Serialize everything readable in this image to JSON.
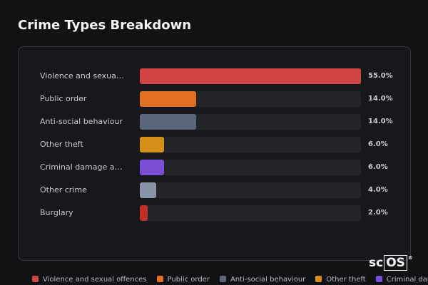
{
  "chart_data": {
    "type": "bar",
    "orientation": "horizontal",
    "title": "Crime Types Breakdown",
    "categories": [
      "Violence and sexual offences",
      "Public order",
      "Anti-social behaviour",
      "Other theft",
      "Criminal damage and arson",
      "Other crime",
      "Burglary"
    ],
    "values": [
      55,
      14,
      14,
      6,
      6,
      4,
      2
    ],
    "value_labels": [
      "55.0%",
      "14.0%",
      "14.0%",
      "6.0%",
      "6.0%",
      "4.0%",
      "2.0%"
    ],
    "colors": [
      "#d24545",
      "#e0701f",
      "#5c6679",
      "#d38f16",
      "#7a4fd6",
      "#8a94a6",
      "#c0302b"
    ],
    "xlim": [
      0,
      55
    ],
    "legend": "bottom"
  },
  "logo": {
    "prefix": "sc",
    "boxed": "OS",
    "mark": "®"
  }
}
